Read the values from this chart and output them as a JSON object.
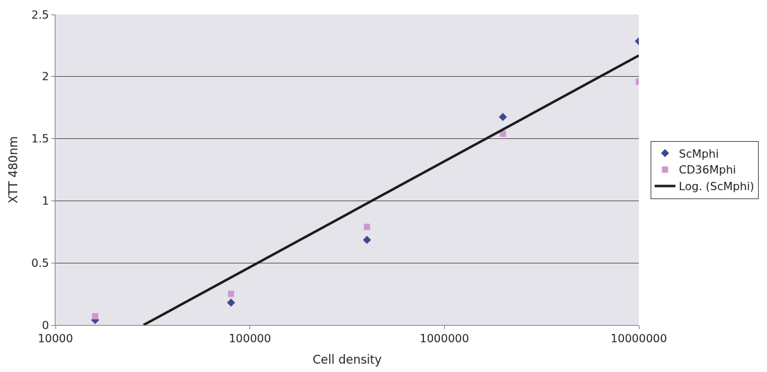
{
  "chart_data": {
    "type": "scatter",
    "xlabel": "Cell density",
    "ylabel": "XTT 480nm",
    "log": "x",
    "xlim": [
      10000,
      10000000
    ],
    "xticks": [
      10000,
      100000,
      1000000,
      10000000
    ],
    "ylim": [
      0,
      2.5
    ],
    "yticks": [
      0,
      0.5,
      1,
      1.5,
      2,
      2.5
    ],
    "grid": "y",
    "legend": "right",
    "series": [
      {
        "name": "ScMphi",
        "color": "#3c4a8c",
        "marker": "diamond",
        "x": [
          16000,
          80000,
          400000,
          2000000,
          10000000
        ],
        "values": [
          0.04,
          0.18,
          0.685,
          1.675,
          2.285
        ]
      },
      {
        "name": "CD36Mphi",
        "color": "#cc99cc",
        "marker": "square",
        "x": [
          16000,
          80000,
          400000,
          2000000,
          10000000
        ],
        "values": [
          0.07,
          0.25,
          0.79,
          1.54,
          1.96
        ]
      },
      {
        "name": "Log. (ScMphi)",
        "type": "line",
        "color": "#1a1a1a",
        "line_style": "solid",
        "x": [
          28400,
          10000000
        ],
        "values": [
          0,
          2.17
        ]
      }
    ]
  }
}
